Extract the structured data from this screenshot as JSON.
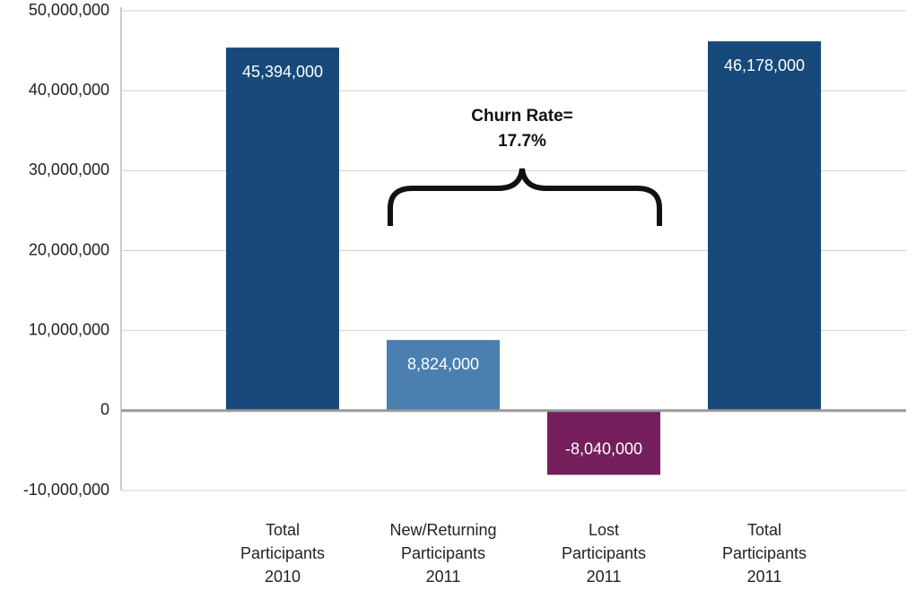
{
  "chart_data": {
    "type": "bar",
    "categories": [
      "Total\nParticipants\n2010",
      "New/Returning\nParticipants\n2011",
      "Lost\nParticipants\n2011",
      "Total\nParticipants\n2011"
    ],
    "values": [
      45394000,
      8824000,
      -8040000,
      46178000
    ],
    "value_labels": [
      "45,394,000",
      "8,824,000",
      "-8,040,000",
      "46,178,000"
    ],
    "colors": [
      "#17497a",
      "#4a7fb0",
      "#741f5c",
      "#17497a"
    ],
    "annotation": "Churn Rate=\n17.7%",
    "ylim": [
      -10000000,
      50000000
    ],
    "yticks": [
      {
        "value": -10000000,
        "label": "-10,000,000"
      },
      {
        "value": 0,
        "label": "0"
      },
      {
        "value": 10000000,
        "label": "10,000,000"
      },
      {
        "value": 20000000,
        "label": "20,000,000"
      },
      {
        "value": 30000000,
        "label": "30,000,000"
      },
      {
        "value": 40000000,
        "label": "40,000,000"
      },
      {
        "value": 50000000,
        "label": "50,000,000"
      }
    ],
    "grid": true
  }
}
